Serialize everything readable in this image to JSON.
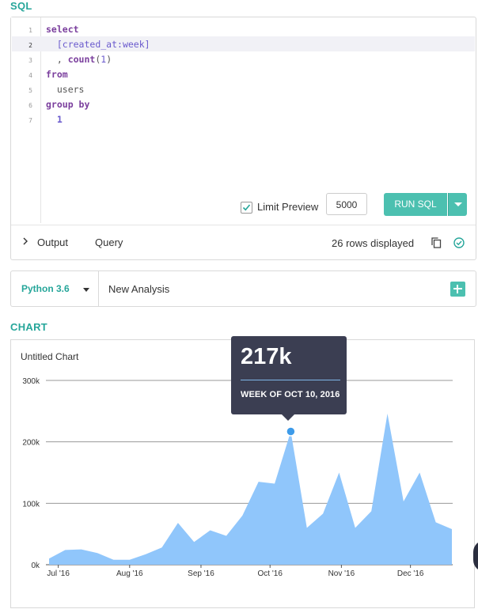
{
  "sql": {
    "title": "SQL",
    "line_numbers": [
      "1",
      "2",
      "3",
      "4",
      "5",
      "6",
      "7"
    ],
    "limit_preview_label": "Limit Preview",
    "limit_preview_checked": true,
    "limit_value": "5000",
    "run_button": "RUN SQL",
    "footer": {
      "output_label": "Output",
      "query_label": "Query",
      "rows_status": "26 rows displayed"
    }
  },
  "python": {
    "version": "Python 3.6",
    "analysis_name": "New Analysis"
  },
  "chart": {
    "section_title": "CHART",
    "chart_title": "Untitled Chart",
    "tooltip": {
      "value": "217k",
      "label": "WEEK OF OCT 10, 2016"
    }
  },
  "colors": {
    "accent": "#4cc0b0",
    "area_fill": "#90c6fb",
    "tooltip_bg": "#3b3e52",
    "keyword": "#7a3e9d"
  },
  "chart_data": {
    "type": "area",
    "title": "Untitled Chart",
    "x_ticks": [
      "Jul '16",
      "Aug '16",
      "Sep '16",
      "Oct '16",
      "Nov '16",
      "Dec '16"
    ],
    "y_ticks": [
      "0k",
      "100k",
      "200k",
      "300k"
    ],
    "ylim": [
      0,
      300000
    ],
    "grid": true,
    "legend": "none",
    "series": [
      {
        "x": [
          "2016-06-27",
          "2016-07-04",
          "2016-07-11",
          "2016-07-18",
          "2016-07-25",
          "2016-08-01",
          "2016-08-08",
          "2016-08-15",
          "2016-08-22",
          "2016-08-29",
          "2016-09-05",
          "2016-09-12",
          "2016-09-19",
          "2016-09-26",
          "2016-10-03",
          "2016-10-10",
          "2016-10-17",
          "2016-10-24",
          "2016-10-31",
          "2016-11-07",
          "2016-11-14",
          "2016-11-21",
          "2016-11-28",
          "2016-12-05",
          "2016-12-12",
          "2016-12-19"
        ],
        "values": [
          10000,
          24000,
          25000,
          19000,
          8000,
          8000,
          17000,
          28000,
          68000,
          37000,
          56000,
          47000,
          80000,
          135000,
          132000,
          217000,
          60000,
          83000,
          150000,
          60000,
          87000,
          246000,
          103000,
          150000,
          69000,
          58000
        ]
      }
    ],
    "highlight": {
      "x": "2016-10-10",
      "value": 217000
    }
  }
}
